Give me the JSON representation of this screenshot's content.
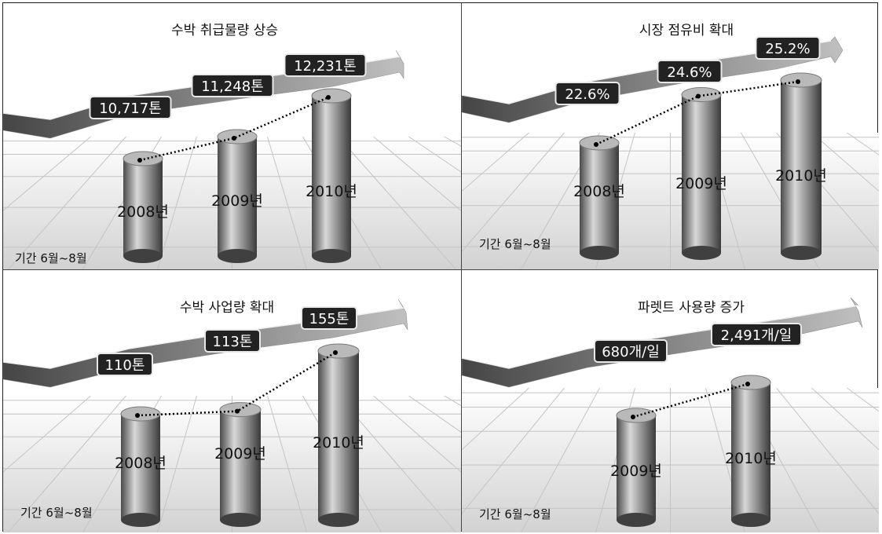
{
  "chart_data": [
    {
      "type": "bar",
      "title": "수박 취급물량 상승",
      "period": "기간 6월~8월",
      "categories": [
        "2008년",
        "2009년",
        "2010년"
      ],
      "values": [
        10717,
        11248,
        12231
      ],
      "value_labels": [
        "10,717톤",
        "11,248톤",
        "12,231톤"
      ],
      "unit": "톤"
    },
    {
      "type": "bar",
      "title": "시장 점유비 확대",
      "period": "기간 6월~8월",
      "categories": [
        "2008년",
        "2009년",
        "2010년"
      ],
      "values": [
        22.6,
        24.6,
        25.2
      ],
      "value_labels": [
        "22.6%",
        "24.6%",
        "25.2%"
      ],
      "unit": "%"
    },
    {
      "type": "bar",
      "title": "수박 사업량 확대",
      "period": "기간 6월~8월",
      "categories": [
        "2008년",
        "2009년",
        "2010년"
      ],
      "values": [
        110,
        113,
        155
      ],
      "value_labels": [
        "110톤",
        "113톤",
        "155톤"
      ],
      "unit": "톤"
    },
    {
      "type": "bar",
      "title": "파렛트 사용량 증가",
      "period": "기간 6월~8월",
      "categories": [
        "2009년",
        "2010년"
      ],
      "values": [
        680,
        2491
      ],
      "value_labels": [
        "680개/일",
        "2,491개/일"
      ],
      "unit": "개/일"
    }
  ]
}
